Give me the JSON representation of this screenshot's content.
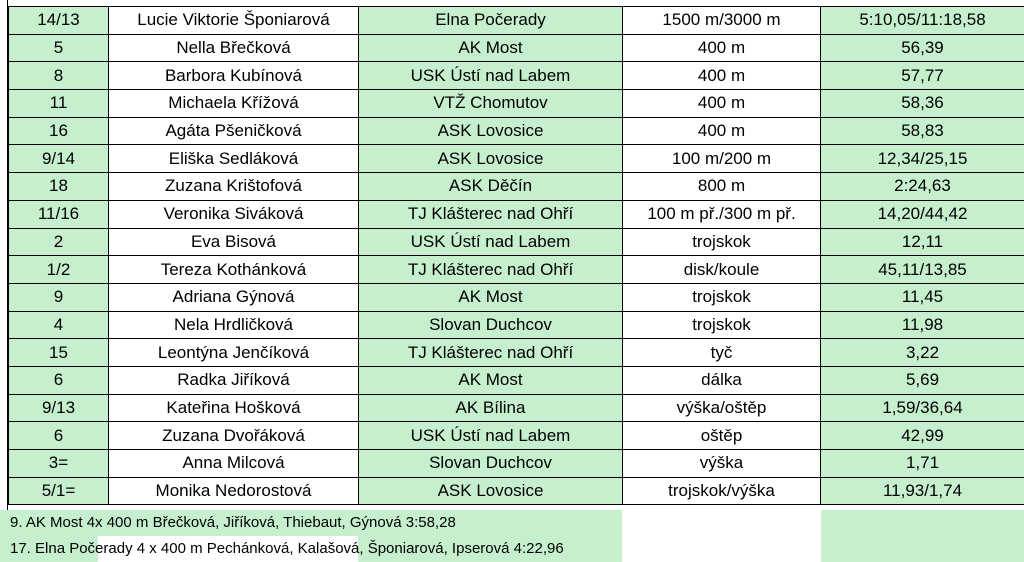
{
  "colors": {
    "green_fill": "#c6efce",
    "border": "#000000",
    "text": "#000000"
  },
  "rows": [
    {
      "place": "14/13",
      "name": "Lucie Viktorie Šponiarová",
      "club": "Elna Počerady",
      "event": "1500 m/3000 m",
      "result": "5:10,05/11:18,58"
    },
    {
      "place": "5",
      "name": "Nella Břečková",
      "club": "AK Most",
      "event": "400 m",
      "result": "56,39"
    },
    {
      "place": "8",
      "name": "Barbora Kubínová",
      "club": "USK Ústí nad Labem",
      "event": "400 m",
      "result": "57,77"
    },
    {
      "place": "11",
      "name": "Michaela Křížová",
      "club": "VTŽ Chomutov",
      "event": "400 m",
      "result": "58,36"
    },
    {
      "place": "16",
      "name": "Agáta Pšeničková",
      "club": "ASK Lovosice",
      "event": "400 m",
      "result": "58,83"
    },
    {
      "place": "9/14",
      "name": "Eliška Sedláková",
      "club": "ASK Lovosice",
      "event": "100 m/200 m",
      "result": "12,34/25,15"
    },
    {
      "place": "18",
      "name": "Zuzana Krištofová",
      "club": "ASK Děčín",
      "event": "800 m",
      "result": "2:24,63"
    },
    {
      "place": "11/16",
      "name": "Veronika Siváková",
      "club": "TJ Klášterec nad Ohří",
      "event": "100 m př./300 m př.",
      "result": "14,20/44,42"
    },
    {
      "place": "2",
      "name": "Eva Bisová",
      "club": "USK Ústí nad Labem",
      "event": "trojskok",
      "result": "12,11"
    },
    {
      "place": "1/2",
      "name": "Tereza Kothánková",
      "club": "TJ Klášterec nad Ohří",
      "event": "disk/koule",
      "result": "45,11/13,85"
    },
    {
      "place": "9",
      "name": "Adriana Gýnová",
      "club": "AK Most",
      "event": "trojskok",
      "result": "11,45"
    },
    {
      "place": "4",
      "name": "Nela Hrdličková",
      "club": "Slovan Duchcov",
      "event": "trojskok",
      "result": "11,98"
    },
    {
      "place": "15",
      "name": "Leontýna Jenčíková",
      "club": "TJ Klášterec nad Ohří",
      "event": "tyč",
      "result": "3,22"
    },
    {
      "place": "6",
      "name": "Radka Jiříková",
      "club": "AK Most",
      "event": "dálka",
      "result": "5,69"
    },
    {
      "place": "9/13",
      "name": "Kateřina Hošková",
      "club": "AK Bílina",
      "event": "výška/oštěp",
      "result": "1,59/36,64"
    },
    {
      "place": "6",
      "name": "Zuzana Dvořáková",
      "club": "USK Ústí nad Labem",
      "event": "oštěp",
      "result": "42,99"
    },
    {
      "place": "3=",
      "name": "Anna Milcová",
      "club": "Slovan Duchcov",
      "event": "výška",
      "result": "1,71"
    },
    {
      "place": "5/1=",
      "name": "Monika Nedorostová",
      "club": "ASK Lovosice",
      "event": "trojskok/výška",
      "result": "11,93/1,74"
    }
  ],
  "relays": [
    "9.  AK Most 4x 400 m Břečková, Jiříková, Thiebaut, Gýnová 3:58,28",
    "17. Elna Počerady 4 x 400 m Pechánková, Kalašová, Šponiarová, Ipserová 4:22,96"
  ]
}
